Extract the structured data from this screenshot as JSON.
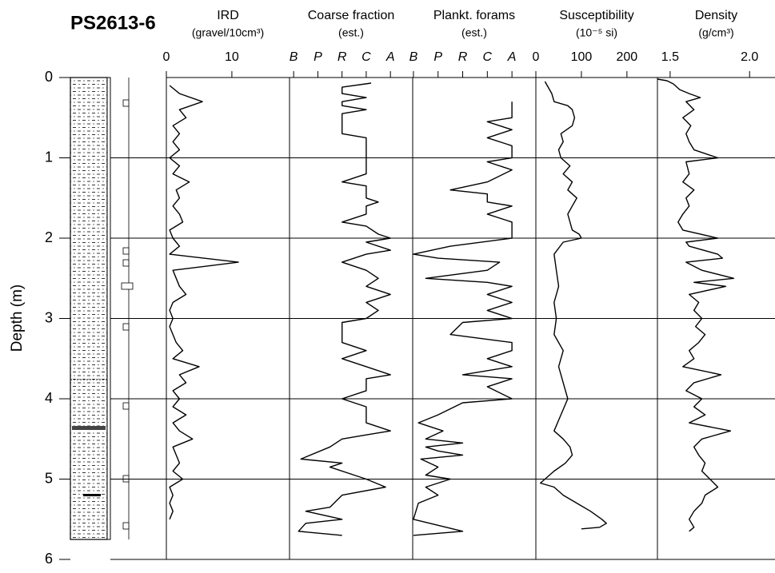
{
  "title": "PS2613-6",
  "depth_axis": {
    "label": "Depth (m)",
    "ylim": [
      0,
      6
    ],
    "yticks": [
      0,
      1,
      2,
      3,
      4,
      5,
      6
    ]
  },
  "chart_data": [
    {
      "type": "line",
      "title": "IRD",
      "subtitle": "(gravel/10cm³)",
      "xlim": [
        0,
        18.8
      ],
      "xticks": [
        0,
        10
      ],
      "color": "#000000",
      "depth": [
        0.1,
        0.2,
        0.3,
        0.4,
        0.5,
        0.6,
        0.7,
        0.8,
        0.9,
        1.0,
        1.1,
        1.2,
        1.3,
        1.4,
        1.5,
        1.6,
        1.7,
        1.8,
        1.9,
        2.0,
        2.1,
        2.2,
        2.3,
        2.4,
        2.5,
        2.6,
        2.7,
        2.8,
        2.9,
        3.0,
        3.1,
        3.2,
        3.3,
        3.4,
        3.5,
        3.6,
        3.7,
        3.8,
        3.9,
        4.0,
        4.1,
        4.2,
        4.3,
        4.4,
        4.5,
        4.6,
        4.7,
        4.8,
        4.9,
        5.0,
        5.1,
        5.2,
        5.3,
        5.4,
        5.5
      ],
      "values": [
        0.5,
        2,
        5.5,
        2,
        3,
        1,
        2,
        1,
        2,
        0.5,
        2,
        1,
        3.5,
        1.5,
        2,
        1,
        2,
        2.5,
        0.5,
        1,
        2,
        0.5,
        11,
        1,
        1.5,
        2,
        3,
        1,
        0.5,
        1,
        0.5,
        1,
        1.5,
        2.5,
        1,
        5,
        2,
        3,
        1,
        2,
        1,
        3,
        1,
        2,
        4,
        1,
        1.5,
        2,
        1,
        2.5,
        0.5,
        1,
        0.5,
        1,
        0.5
      ]
    },
    {
      "type": "line",
      "title": "Coarse fraction",
      "subtitle": "(est.)",
      "xlim": [
        -0.17,
        4.92
      ],
      "color": "#000000",
      "xticks": [
        {
          "value": 0,
          "label": "B"
        },
        {
          "value": 1,
          "label": "P"
        },
        {
          "value": 2,
          "label": "R"
        },
        {
          "value": 3,
          "label": "C"
        },
        {
          "value": 4,
          "label": "A"
        }
      ],
      "depth": [
        0.07,
        0.12,
        0.2,
        0.25,
        0.3,
        0.35,
        0.4,
        0.45,
        0.7,
        0.75,
        1.2,
        1.3,
        1.35,
        1.5,
        1.55,
        1.6,
        1.7,
        1.8,
        1.85,
        1.95,
        2.0,
        2.05,
        2.15,
        2.2,
        2.3,
        2.4,
        2.5,
        2.6,
        2.7,
        2.8,
        2.9,
        3.0,
        3.05,
        3.3,
        3.4,
        3.5,
        3.6,
        3.7,
        3.75,
        3.9,
        4.0,
        4.1,
        4.3,
        4.4,
        4.45,
        4.5,
        4.6,
        4.75,
        4.8,
        4.85,
        4.95,
        5.0,
        5.1,
        5.2,
        5.35,
        5.4,
        5.5,
        5.55,
        5.65,
        5.7
      ],
      "values": [
        3.2,
        2,
        2,
        3,
        2,
        2,
        3,
        2,
        2,
        3,
        3,
        2,
        3,
        3,
        3.5,
        3,
        3,
        2,
        3,
        3.5,
        4,
        3,
        4,
        3,
        2,
        3,
        3.5,
        3,
        4,
        3,
        3.5,
        3,
        2,
        2,
        3,
        2,
        3,
        4,
        3,
        3,
        2,
        3,
        3,
        4,
        3,
        2,
        1.5,
        0.3,
        2,
        1.5,
        2.5,
        3,
        3.8,
        2,
        1.5,
        0.5,
        2,
        0.5,
        0.2,
        2
      ]
    },
    {
      "type": "line",
      "title": "Plankt. forams",
      "subtitle": "(est.)",
      "xlim": [
        -0.03,
        4.97
      ],
      "color": "#000000",
      "xticks": [
        {
          "value": 0,
          "label": "B"
        },
        {
          "value": 1,
          "label": "P"
        },
        {
          "value": 2,
          "label": "R"
        },
        {
          "value": 3,
          "label": "C"
        },
        {
          "value": 4,
          "label": "A"
        }
      ],
      "depth": [
        0.3,
        0.5,
        0.55,
        0.65,
        0.75,
        0.85,
        1.0,
        1.05,
        1.15,
        1.3,
        1.4,
        1.45,
        1.55,
        1.6,
        1.7,
        1.8,
        2.0,
        2.1,
        2.2,
        2.25,
        2.3,
        2.4,
        2.5,
        2.55,
        2.6,
        2.7,
        2.8,
        2.9,
        3.0,
        3.05,
        3.2,
        3.3,
        3.4,
        3.5,
        3.6,
        3.7,
        3.75,
        3.85,
        4.0,
        4.05,
        4.2,
        4.3,
        4.4,
        4.5,
        4.55,
        4.6,
        4.65,
        4.7,
        4.75,
        4.85,
        4.95,
        5.0,
        5.1,
        5.2,
        5.3,
        5.5,
        5.65,
        5.7
      ],
      "values": [
        4,
        4,
        3,
        4,
        3,
        4,
        4,
        3,
        4,
        3,
        1.5,
        3,
        3,
        4,
        3,
        4,
        4,
        1.5,
        0,
        1,
        3.5,
        3,
        0.5,
        3,
        4,
        3,
        4,
        3,
        4,
        2,
        1.5,
        4,
        4,
        3,
        4,
        2,
        4,
        3,
        4,
        2,
        1,
        0.2,
        1.2,
        0.5,
        2,
        0.5,
        1,
        2,
        0.3,
        1,
        0.5,
        1.5,
        0.5,
        1,
        0.2,
        0,
        2,
        0
      ]
    },
    {
      "type": "line",
      "title": "Susceptibility",
      "subtitle": "(10⁻⁵ si)",
      "xlim": [
        0,
        267
      ],
      "xticks": [
        0,
        100,
        200
      ],
      "color": "#000000",
      "depth": [
        0.05,
        0.1,
        0.2,
        0.3,
        0.35,
        0.4,
        0.5,
        0.6,
        0.7,
        0.8,
        0.9,
        1.0,
        1.1,
        1.2,
        1.3,
        1.4,
        1.5,
        1.6,
        1.7,
        1.8,
        1.9,
        1.95,
        2.0,
        2.05,
        2.2,
        2.4,
        2.6,
        2.8,
        3.0,
        3.2,
        3.4,
        3.6,
        3.8,
        4.0,
        4.2,
        4.4,
        4.5,
        4.6,
        4.7,
        4.8,
        4.9,
        5.0,
        5.05,
        5.1,
        5.2,
        5.3,
        5.4,
        5.5,
        5.55,
        5.6,
        5.62
      ],
      "values": [
        20,
        25,
        35,
        40,
        70,
        80,
        85,
        80,
        55,
        60,
        50,
        55,
        75,
        60,
        80,
        70,
        90,
        80,
        70,
        75,
        80,
        95,
        100,
        60,
        40,
        45,
        50,
        40,
        45,
        40,
        60,
        50,
        60,
        70,
        55,
        40,
        60,
        75,
        80,
        65,
        40,
        20,
        10,
        40,
        60,
        90,
        120,
        145,
        155,
        140,
        100
      ]
    },
    {
      "type": "line",
      "title": "Density",
      "subtitle": "(g/cm³)",
      "xlim": [
        1.42,
        2.16
      ],
      "xticks": [
        1.5,
        {
          "value": 2,
          "label": "2.0"
        }
      ],
      "color": "#000000",
      "depth": [
        0.02,
        0.04,
        0.08,
        0.15,
        0.2,
        0.25,
        0.3,
        0.4,
        0.5,
        0.6,
        0.7,
        0.8,
        0.9,
        1.0,
        1.05,
        1.2,
        1.3,
        1.4,
        1.5,
        1.6,
        1.7,
        1.8,
        1.9,
        2.0,
        2.05,
        2.1,
        2.2,
        2.25,
        2.3,
        2.4,
        2.5,
        2.55,
        2.6,
        2.7,
        2.8,
        2.9,
        3.0,
        3.1,
        3.2,
        3.3,
        3.4,
        3.5,
        3.6,
        3.7,
        3.8,
        3.9,
        4.0,
        4.1,
        4.2,
        4.3,
        4.4,
        4.5,
        4.6,
        4.7,
        4.8,
        4.9,
        5.0,
        5.1,
        5.2,
        5.3,
        5.4,
        5.5,
        5.6,
        5.65
      ],
      "values": [
        1.42,
        1.48,
        1.52,
        1.56,
        1.62,
        1.69,
        1.6,
        1.65,
        1.58,
        1.63,
        1.6,
        1.62,
        1.65,
        1.8,
        1.6,
        1.62,
        1.58,
        1.65,
        1.6,
        1.62,
        1.58,
        1.55,
        1.58,
        1.8,
        1.6,
        1.62,
        1.8,
        1.83,
        1.6,
        1.7,
        1.9,
        1.65,
        1.85,
        1.62,
        1.68,
        1.65,
        1.7,
        1.66,
        1.72,
        1.68,
        1.62,
        1.65,
        1.58,
        1.82,
        1.65,
        1.6,
        1.7,
        1.65,
        1.72,
        1.62,
        1.88,
        1.7,
        1.65,
        1.68,
        1.72,
        1.7,
        1.75,
        1.8,
        1.72,
        1.7,
        1.65,
        1.62,
        1.65,
        1.62
      ]
    }
  ]
}
